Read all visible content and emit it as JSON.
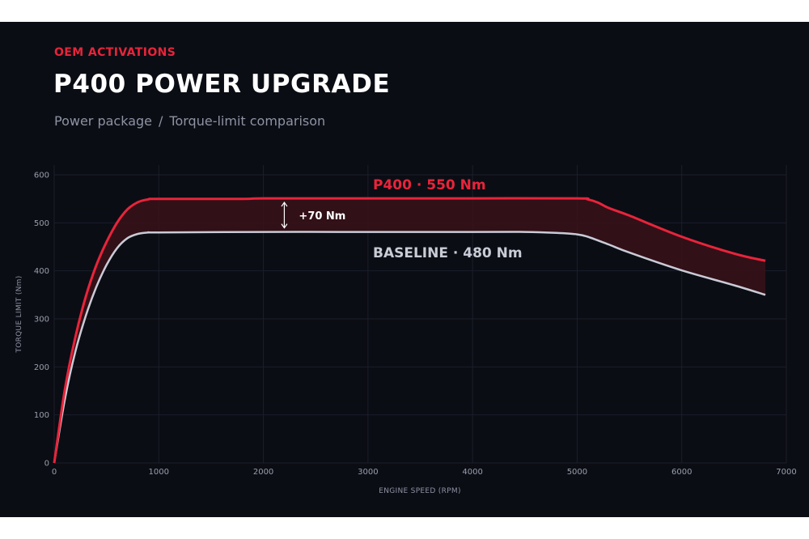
{
  "header": {
    "eyebrow": "OEM ACTIVATIONS",
    "title": "P400 POWER UPGRADE",
    "breadcrumb": [
      "Power package",
      "/",
      "Torque-limit comparison"
    ]
  },
  "colors": {
    "background": "#0b0d14",
    "upgrade": "#e8243a",
    "baseline": "#c9cbd6",
    "band": "#3a1219",
    "grid": "#1b1f2a"
  },
  "chart_data": {
    "type": "line",
    "xlabel": "ENGINE SPEED (RPM)",
    "ylabel": "TORQUE LIMIT (Nm)",
    "xlim": [
      0,
      7000
    ],
    "ylim": [
      0,
      600
    ],
    "x_ticks": [
      0,
      1000,
      2000,
      3000,
      4000,
      5000,
      6000,
      7000
    ],
    "y_ticks": [
      0,
      100,
      200,
      300,
      400,
      500,
      600
    ],
    "grid": true,
    "series": [
      {
        "name": "P400",
        "label": "P400 · 550 Nm",
        "color": "#e8243a",
        "points": [
          [
            0,
            0
          ],
          [
            100,
            150
          ],
          [
            200,
            260
          ],
          [
            300,
            345
          ],
          [
            400,
            410
          ],
          [
            500,
            460
          ],
          [
            600,
            500
          ],
          [
            700,
            528
          ],
          [
            800,
            543
          ],
          [
            900,
            549
          ],
          [
            1000,
            550
          ],
          [
            1800,
            550
          ],
          [
            2000,
            551
          ],
          [
            3000,
            551
          ],
          [
            4000,
            551
          ],
          [
            5000,
            551
          ],
          [
            5100,
            549
          ],
          [
            5200,
            542
          ],
          [
            5300,
            531
          ],
          [
            5500,
            515
          ],
          [
            6000,
            471
          ],
          [
            6500,
            436
          ],
          [
            6800,
            421
          ]
        ]
      },
      {
        "name": "BASELINE",
        "label": "BASELINE · 480 Nm",
        "color": "#c9cbd6",
        "points": [
          [
            0,
            0
          ],
          [
            100,
            130
          ],
          [
            200,
            230
          ],
          [
            300,
            305
          ],
          [
            400,
            365
          ],
          [
            500,
            412
          ],
          [
            600,
            447
          ],
          [
            700,
            468
          ],
          [
            800,
            477
          ],
          [
            900,
            480
          ],
          [
            1000,
            480
          ],
          [
            2000,
            481
          ],
          [
            3000,
            481
          ],
          [
            4000,
            481
          ],
          [
            4500,
            481
          ],
          [
            4800,
            479
          ],
          [
            5000,
            476
          ],
          [
            5100,
            471
          ],
          [
            5300,
            455
          ],
          [
            5500,
            438
          ],
          [
            6000,
            401
          ],
          [
            6500,
            370
          ],
          [
            6800,
            350
          ]
        ]
      }
    ],
    "annotations": [
      {
        "text": "+70 Nm",
        "x": 2200,
        "y_from": 481,
        "y_to": 551
      }
    ]
  }
}
